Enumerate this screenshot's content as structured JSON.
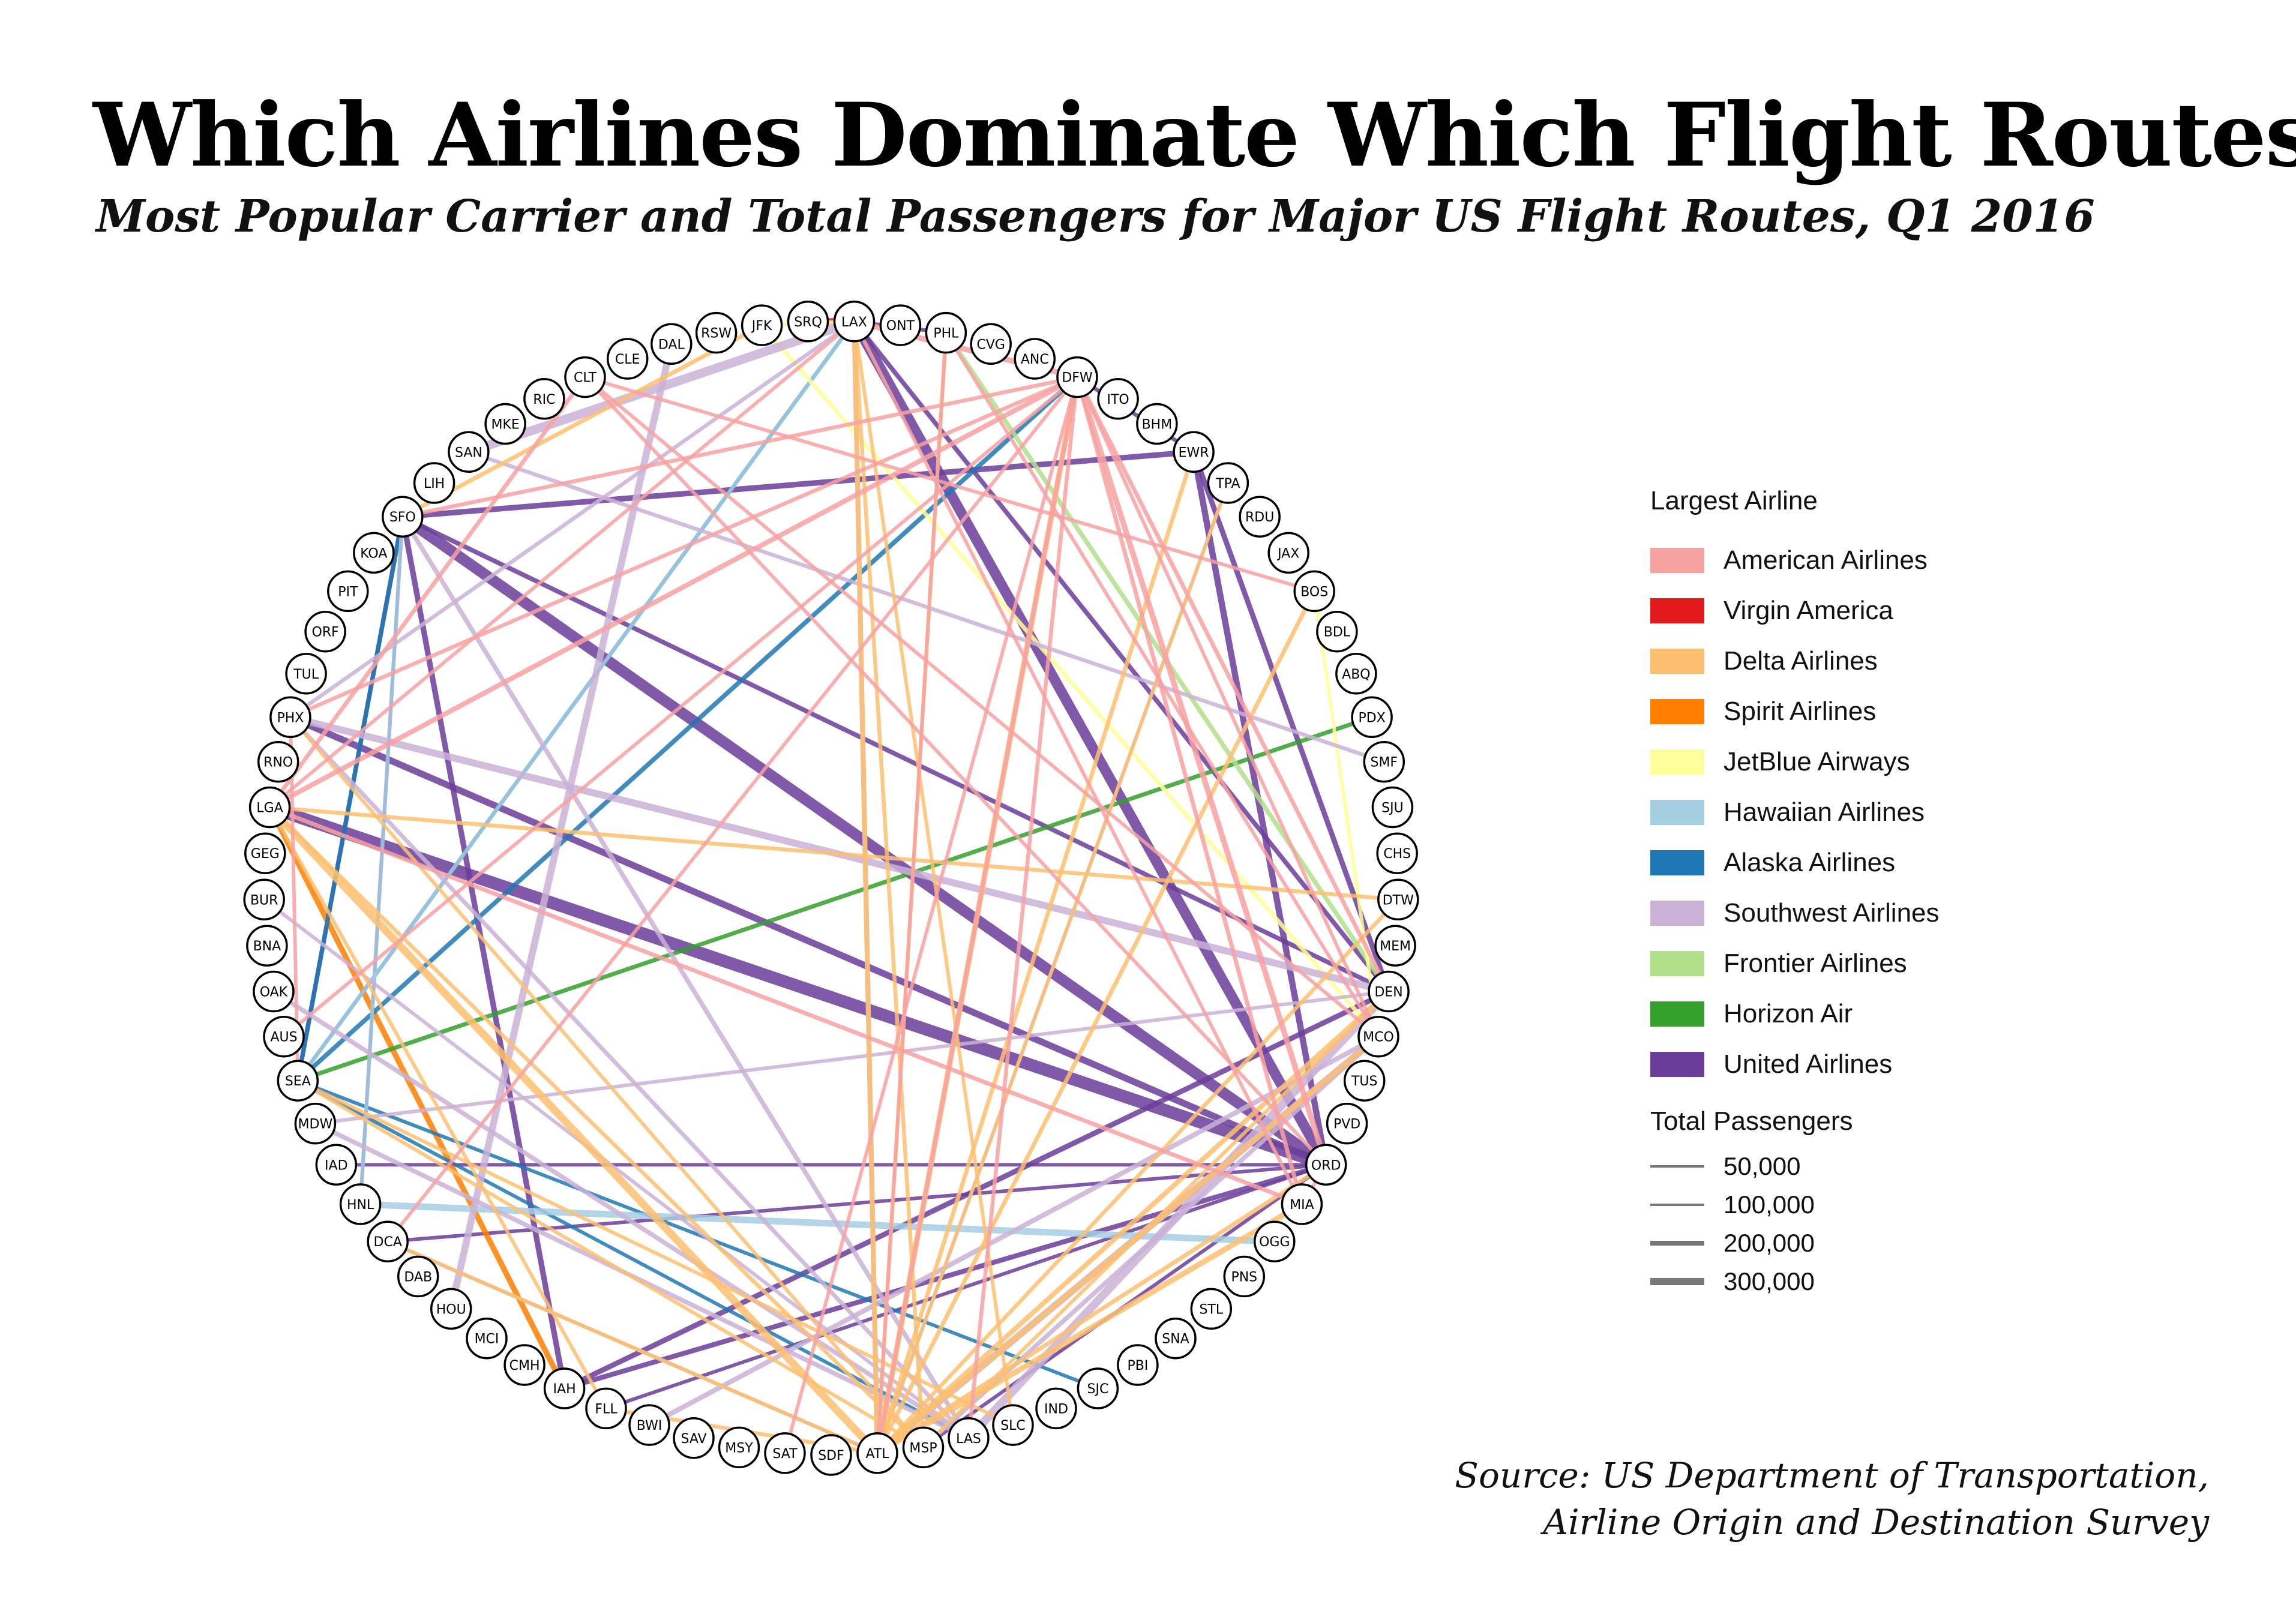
{
  "title": "Which Airlines Dominate Which Flight Routes?",
  "subtitle": "Most Popular Carrier and Total Passengers for Major US Flight Routes, Q1 2016",
  "source_line1": "Source: US Department of Transportation,",
  "source_line2": "Airline Origin and Destination Survey",
  "legend": {
    "airline_title": "Largest Airline",
    "airlines": [
      {
        "name": "American Airlines",
        "color": "#f8a1a1"
      },
      {
        "name": "Virgin America",
        "color": "#e31a1c"
      },
      {
        "name": "Delta Airlines",
        "color": "#fdbf6f"
      },
      {
        "name": "Spirit Airlines",
        "color": "#ff7f00"
      },
      {
        "name": "JetBlue Airways",
        "color": "#ffff99"
      },
      {
        "name": "Hawaiian Airlines",
        "color": "#a6cee3"
      },
      {
        "name": "Alaska Airlines",
        "color": "#1f78b4"
      },
      {
        "name": "Southwest Airlines",
        "color": "#cab2d6"
      },
      {
        "name": "Frontier Airlines",
        "color": "#b2df8a"
      },
      {
        "name": "Horizon Air",
        "color": "#33a02c"
      },
      {
        "name": "United Airlines",
        "color": "#6a3d9a"
      }
    ],
    "passengers_title": "Total Passengers",
    "passengers": [
      {
        "label": "50,000",
        "value": 50000
      },
      {
        "label": "100,000",
        "value": 100000
      },
      {
        "label": "200,000",
        "value": 200000
      },
      {
        "label": "300,000",
        "value": 300000
      }
    ]
  },
  "airports": [
    "LAX",
    "ONT",
    "PHL",
    "CVG",
    "ANC",
    "DFW",
    "ITO",
    "BHM",
    "EWR",
    "TPA",
    "RDU",
    "JAX",
    "BOS",
    "BDL",
    "ABQ",
    "PDX",
    "SMF",
    "SJU",
    "CHS",
    "DTW",
    "MEM",
    "DEN",
    "MCO",
    "TUS",
    "PVD",
    "ORD",
    "MIA",
    "OGG",
    "PNS",
    "STL",
    "SNA",
    "PBI",
    "SJC",
    "IND",
    "SLC",
    "LAS",
    "MSP",
    "ATL",
    "SDF",
    "SAT",
    "MSY",
    "SAV",
    "BWI",
    "FLL",
    "IAH",
    "CMH",
    "MCI",
    "HOU",
    "DAB",
    "DCA",
    "HNL",
    "IAD",
    "MDW",
    "SEA",
    "AUS",
    "OAK",
    "BNA",
    "BUR",
    "GEG",
    "LGA",
    "RNO",
    "PHX",
    "TUL",
    "ORF",
    "PIT",
    "KOA",
    "SFO",
    "LIH",
    "SAN",
    "MKE",
    "RIC",
    "CLT",
    "CLE",
    "DAL",
    "RSW",
    "JFK",
    "SRQ"
  ],
  "routes": [
    {
      "from": "SFO",
      "to": "ORD",
      "airline": "United Airlines",
      "passengers": 280000
    },
    {
      "from": "LGA",
      "to": "ORD",
      "airline": "United Airlines",
      "passengers": 320000
    },
    {
      "from": "LAX",
      "to": "ORD",
      "airline": "United Airlines",
      "passengers": 260000
    },
    {
      "from": "PHX",
      "to": "ORD",
      "airline": "United Airlines",
      "passengers": 150000
    },
    {
      "from": "SFO",
      "to": "IAH",
      "airline": "United Airlines",
      "passengers": 120000
    },
    {
      "from": "SFO",
      "to": "EWR",
      "airline": "United Airlines",
      "passengers": 120000
    },
    {
      "from": "EWR",
      "to": "ORD",
      "airline": "United Airlines",
      "passengers": 140000
    },
    {
      "from": "EWR",
      "to": "DEN",
      "airline": "United Airlines",
      "passengers": 110000
    },
    {
      "from": "LAX",
      "to": "DEN",
      "airline": "United Airlines",
      "passengers": 90000
    },
    {
      "from": "DEN",
      "to": "IAH",
      "airline": "United Airlines",
      "passengers": 110000
    },
    {
      "from": "IAH",
      "to": "ORD",
      "airline": "United Airlines",
      "passengers": 100000
    },
    {
      "from": "SFO",
      "to": "DEN",
      "airline": "United Airlines",
      "passengers": 90000
    },
    {
      "from": "SEA",
      "to": "SFO",
      "airline": "United Airlines",
      "passengers": 80000
    },
    {
      "from": "DFW",
      "to": "EWR",
      "airline": "United Airlines",
      "passengers": 70000
    },
    {
      "from": "LAX",
      "to": "PHL",
      "airline": "United Airlines",
      "passengers": 60000
    },
    {
      "from": "HNL",
      "to": "SFO",
      "airline": "United Airlines",
      "passengers": 60000
    },
    {
      "from": "MSP",
      "to": "ORD",
      "airline": "United Airlines",
      "passengers": 60000
    },
    {
      "from": "DCA",
      "to": "ORD",
      "airline": "United Airlines",
      "passengers": 60000
    },
    {
      "from": "IAD",
      "to": "ORD",
      "airline": "United Airlines",
      "passengers": 60000
    },
    {
      "from": "FLL",
      "to": "ORD",
      "airline": "United Airlines",
      "passengers": 60000
    },
    {
      "from": "SRQ",
      "to": "LAX",
      "airline": "Virgin America",
      "passengers": 150000
    },
    {
      "from": "LGA",
      "to": "IAH",
      "airline": "Spirit Airlines",
      "passengers": 120000
    },
    {
      "from": "SEA",
      "to": "SFO",
      "airline": "Alaska Airlines",
      "passengers": 90000
    },
    {
      "from": "SEA",
      "to": "DFW",
      "airline": "Alaska Airlines",
      "passengers": 90000
    },
    {
      "from": "SEA",
      "to": "LAX",
      "airline": "Alaska Airlines",
      "passengers": 70000
    },
    {
      "from": "SEA",
      "to": "SJC",
      "airline": "Alaska Airlines",
      "passengers": 60000
    },
    {
      "from": "SEA",
      "to": "LAS",
      "airline": "Alaska Airlines",
      "passengers": 60000
    },
    {
      "from": "SEA",
      "to": "PDX",
      "airline": "Horizon Air",
      "passengers": 80000
    },
    {
      "from": "DEN",
      "to": "PHL",
      "airline": "Frontier Airlines",
      "passengers": 90000
    },
    {
      "from": "HNL",
      "to": "OGG",
      "airline": "Hawaiian Airlines",
      "passengers": 150000
    },
    {
      "from": "LAX",
      "to": "SEA",
      "airline": "Hawaiian Airlines",
      "passengers": 70000
    },
    {
      "from": "HNL",
      "to": "SFO",
      "airline": "Hawaiian Airlines",
      "passengers": 70000
    },
    {
      "from": "JFK",
      "to": "LAX",
      "airline": "JetBlue Airways",
      "passengers": 80000
    },
    {
      "from": "JFK",
      "to": "MCO",
      "airline": "JetBlue Airways",
      "passengers": 80000
    },
    {
      "from": "BOS",
      "to": "MCO",
      "airline": "JetBlue Airways",
      "passengers": 60000
    },
    {
      "from": "SAN",
      "to": "LAX",
      "airline": "Southwest Airlines",
      "passengers": 220000
    },
    {
      "from": "LAS",
      "to": "DEN",
      "airline": "Southwest Airlines",
      "passengers": 200000
    },
    {
      "from": "MCO",
      "to": "ATL",
      "airline": "Southwest Airlines",
      "passengers": 160000
    },
    {
      "from": "PHX",
      "to": "DEN",
      "airline": "Southwest Airlines",
      "passengers": 160000
    },
    {
      "from": "DAL",
      "to": "HOU",
      "airline": "Southwest Airlines",
      "passengers": 160000
    },
    {
      "from": "MDW",
      "to": "LAS",
      "airline": "Southwest Airlines",
      "passengers": 90000
    },
    {
      "from": "OAK",
      "to": "LAS",
      "airline": "Southwest Airlines",
      "passengers": 90000
    },
    {
      "from": "BWI",
      "to": "MCO",
      "airline": "Southwest Airlines",
      "passengers": 100000
    },
    {
      "from": "LAX",
      "to": "ATL",
      "airline": "Southwest Airlines",
      "passengers": 100000
    },
    {
      "from": "SFO",
      "to": "LAS",
      "airline": "Southwest Airlines",
      "passengers": 90000
    },
    {
      "from": "MCO",
      "to": "MSP",
      "airline": "Southwest Airlines",
      "passengers": 90000
    },
    {
      "from": "PHX",
      "to": "LAS",
      "airline": "Southwest Airlines",
      "passengers": 80000
    },
    {
      "from": "SAN",
      "to": "SMF",
      "airline": "Southwest Airlines",
      "passengers": 70000
    },
    {
      "from": "LAX",
      "to": "PHX",
      "airline": "Southwest Airlines",
      "passengers": 70000
    },
    {
      "from": "BUR",
      "to": "LAS",
      "airline": "Southwest Airlines",
      "passengers": 60000
    },
    {
      "from": "DEN",
      "to": "MDW",
      "airline": "Southwest Airlines",
      "passengers": 60000
    },
    {
      "from": "DCA",
      "to": "ATL",
      "airline": "Southwest Airlines",
      "passengers": 60000
    },
    {
      "from": "TPA",
      "to": "ATL",
      "airline": "Southwest Airlines",
      "passengers": 60000
    },
    {
      "from": "ATL",
      "to": "LGA",
      "airline": "Delta Airlines",
      "passengers": 180000
    },
    {
      "from": "ATL",
      "to": "DFW",
      "airline": "Delta Airlines",
      "passengers": 120000
    },
    {
      "from": "ATL",
      "to": "MIA",
      "airline": "Delta Airlines",
      "passengers": 120000
    },
    {
      "from": "ATL",
      "to": "DEN",
      "airline": "Delta Airlines",
      "passengers": 100000
    },
    {
      "from": "ATL",
      "to": "LAX",
      "airline": "Delta Airlines",
      "passengers": 100000
    },
    {
      "from": "ATL",
      "to": "MCO",
      "airline": "Delta Airlines",
      "passengers": 120000
    },
    {
      "from": "ATL",
      "to": "BOS",
      "airline": "Delta Airlines",
      "passengers": 80000
    },
    {
      "from": "ATL",
      "to": "EWR",
      "airline": "Delta Airlines",
      "passengers": 80000
    },
    {
      "from": "ATL",
      "to": "ORD",
      "airline": "Delta Airlines",
      "passengers": 80000
    },
    {
      "from": "ATL",
      "to": "PHL",
      "airline": "Delta Airlines",
      "passengers": 70000
    },
    {
      "from": "ATL",
      "to": "TPA",
      "airline": "Delta Airlines",
      "passengers": 60000
    },
    {
      "from": "ATL",
      "to": "FLL",
      "airline": "Delta Airlines",
      "passengers": 70000
    },
    {
      "from": "ATL",
      "to": "DCA",
      "airline": "Delta Airlines",
      "passengers": 70000
    },
    {
      "from": "MSP",
      "to": "LAX",
      "airline": "Delta Airlines",
      "passengers": 70000
    },
    {
      "from": "MSP",
      "to": "DEN",
      "airline": "Delta Airlines",
      "passengers": 60000
    },
    {
      "from": "MSP",
      "to": "SEA",
      "airline": "Delta Airlines",
      "passengers": 60000
    },
    {
      "from": "MSP",
      "to": "LGA",
      "airline": "Delta Airlines",
      "passengers": 70000
    },
    {
      "from": "MSP",
      "to": "PHX",
      "airline": "Delta Airlines",
      "passengers": 60000
    },
    {
      "from": "DTW",
      "to": "LGA",
      "airline": "Delta Airlines",
      "passengers": 70000
    },
    {
      "from": "DTW",
      "to": "ATL",
      "airline": "Delta Airlines",
      "passengers": 70000
    },
    {
      "from": "SLC",
      "to": "LAX",
      "airline": "Delta Airlines",
      "passengers": 60000
    },
    {
      "from": "SLC",
      "to": "SEA",
      "airline": "Delta Airlines",
      "passengers": 60000
    },
    {
      "from": "JFK",
      "to": "SFO",
      "airline": "Delta Airlines",
      "passengers": 80000
    },
    {
      "from": "LGA",
      "to": "FLL",
      "airline": "Delta Airlines",
      "passengers": 60000
    },
    {
      "from": "DFW",
      "to": "LAX",
      "airline": "American Airlines",
      "passengers": 120000
    },
    {
      "from": "DFW",
      "to": "ORD",
      "airline": "American Airlines",
      "passengers": 120000
    },
    {
      "from": "DFW",
      "to": "LGA",
      "airline": "American Airlines",
      "passengers": 100000
    },
    {
      "from": "DFW",
      "to": "MIA",
      "airline": "American Airlines",
      "passengers": 80000
    },
    {
      "from": "DFW",
      "to": "DEN",
      "airline": "American Airlines",
      "passengers": 80000
    },
    {
      "from": "DFW",
      "to": "ATL",
      "airline": "American Airlines",
      "passengers": 80000
    },
    {
      "from": "DFW",
      "to": "SFO",
      "airline": "American Airlines",
      "passengers": 70000
    },
    {
      "from": "DFW",
      "to": "PHX",
      "airline": "American Airlines",
      "passengers": 70000
    },
    {
      "from": "DFW",
      "to": "LAS",
      "airline": "American Airlines",
      "passengers": 70000
    },
    {
      "from": "DFW",
      "to": "MCO",
      "airline": "American Airlines",
      "passengers": 60000
    },
    {
      "from": "DFW",
      "to": "SAT",
      "airline": "American Airlines",
      "passengers": 60000
    },
    {
      "from": "DFW",
      "to": "AUS",
      "airline": "American Airlines",
      "passengers": 60000
    },
    {
      "from": "CLT",
      "to": "ORD",
      "airline": "American Airlines",
      "passengers": 60000
    },
    {
      "from": "CLT",
      "to": "LGA",
      "airline": "American Airlines",
      "passengers": 80000
    },
    {
      "from": "CLT",
      "to": "BOS",
      "airline": "American Airlines",
      "passengers": 60000
    },
    {
      "from": "CLT",
      "to": "MCO",
      "airline": "American Airlines",
      "passengers": 60000
    },
    {
      "from": "PHX",
      "to": "SEA",
      "airline": "American Airlines",
      "passengers": 60000
    },
    {
      "from": "LAX",
      "to": "MIA",
      "airline": "American Airlines",
      "passengers": 60000
    },
    {
      "from": "MIA",
      "to": "LGA",
      "airline": "American Airlines",
      "passengers": 80000
    },
    {
      "from": "PHL",
      "to": "MCO",
      "airline": "American Airlines",
      "passengers": 60000
    },
    {
      "from": "PHL",
      "to": "ATL",
      "airline": "American Airlines",
      "passengers": 60000
    },
    {
      "from": "LAX",
      "to": "LGA",
      "airline": "American Airlines",
      "passengers": 60000
    },
    {
      "from": "MIA",
      "to": "ORD",
      "airline": "American Airlines",
      "passengers": 60000
    },
    {
      "from": "DCA",
      "to": "DFW",
      "airline": "American Airlines",
      "passengers": 60000
    }
  ]
}
